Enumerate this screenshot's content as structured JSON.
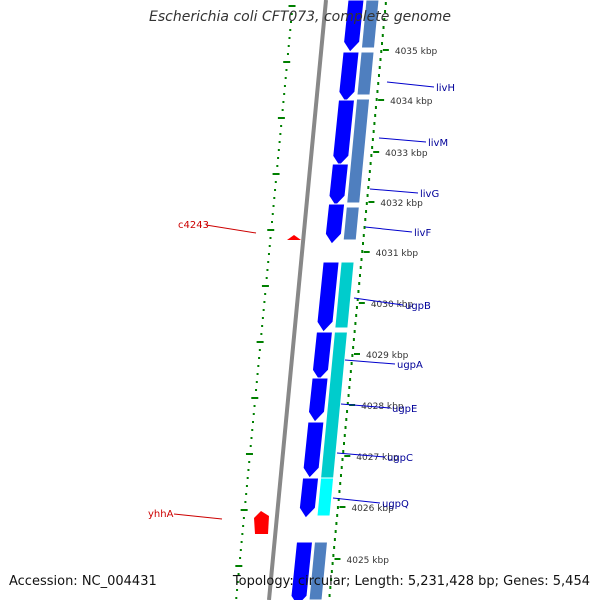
{
  "title": "Escherichia coli CFT073, complete genome",
  "footer": {
    "accession": "Accession: NC_004431",
    "summary": "Topology: circular; Length: 5,231,428 bp; Genes: 5,454"
  },
  "colors": {
    "backbone": "#888888",
    "forward_gene": "#0000ff",
    "reverse_gene": "#ff0000",
    "ticks": "#008000",
    "forward_label": "#000099",
    "reverse_label": "#cc0000",
    "cog_blue": "#4f7fbf",
    "cog_cyan": "#00cccc"
  },
  "scale_labels": [
    "4035 kbp",
    "4034 kbp",
    "4033 kbp",
    "4032 kbp",
    "4031 kbp",
    "4030 kbp",
    "4029 kbp",
    "4028 kbp",
    "4027 kbp",
    "4026 kbp",
    "4025 kbp"
  ],
  "forward_genes": [
    "livH",
    "livM",
    "livG",
    "livF",
    "ugpB",
    "ugpA",
    "ugpE",
    "ugpC",
    "ugpQ"
  ],
  "reverse_genes": [
    "c4243",
    "yhhA"
  ]
}
